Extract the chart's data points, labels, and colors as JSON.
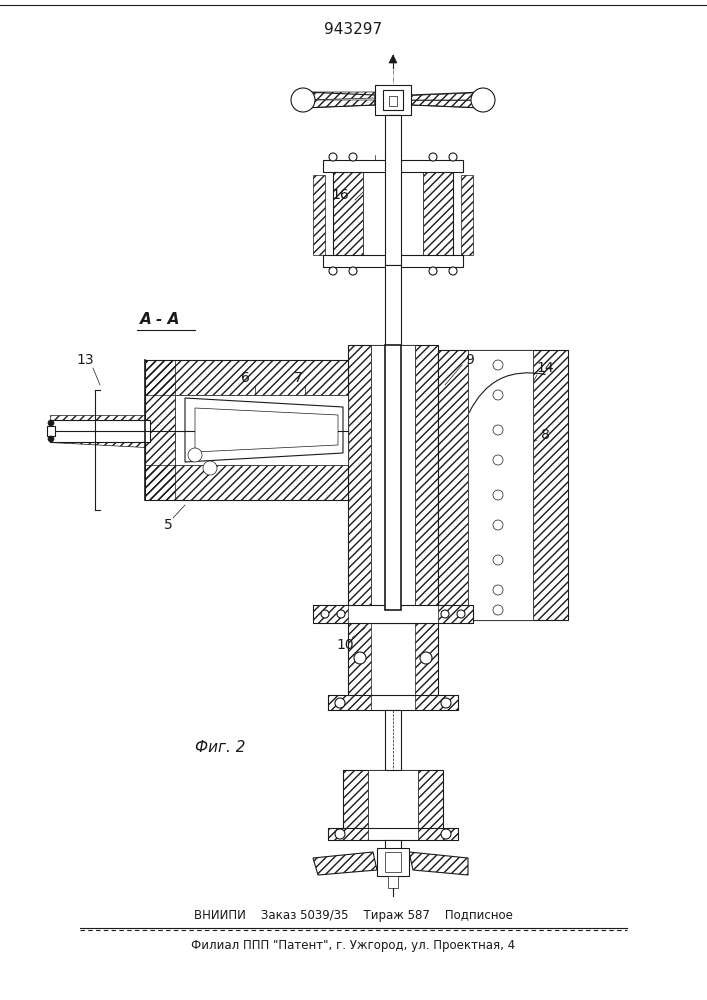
{
  "patent_number": "943297",
  "figure_label": "Фиг. 2",
  "section_label": "А - А",
  "bottom_line1": "ВНИИПИ    Заказ 5039/35    Тираж 587    Подписное",
  "bottom_line2": "Филиал ППП \"Патент\", г. Ужгород, ул. Проектная, 4",
  "bg_color": "#ffffff",
  "lc": "#1a1a1a"
}
